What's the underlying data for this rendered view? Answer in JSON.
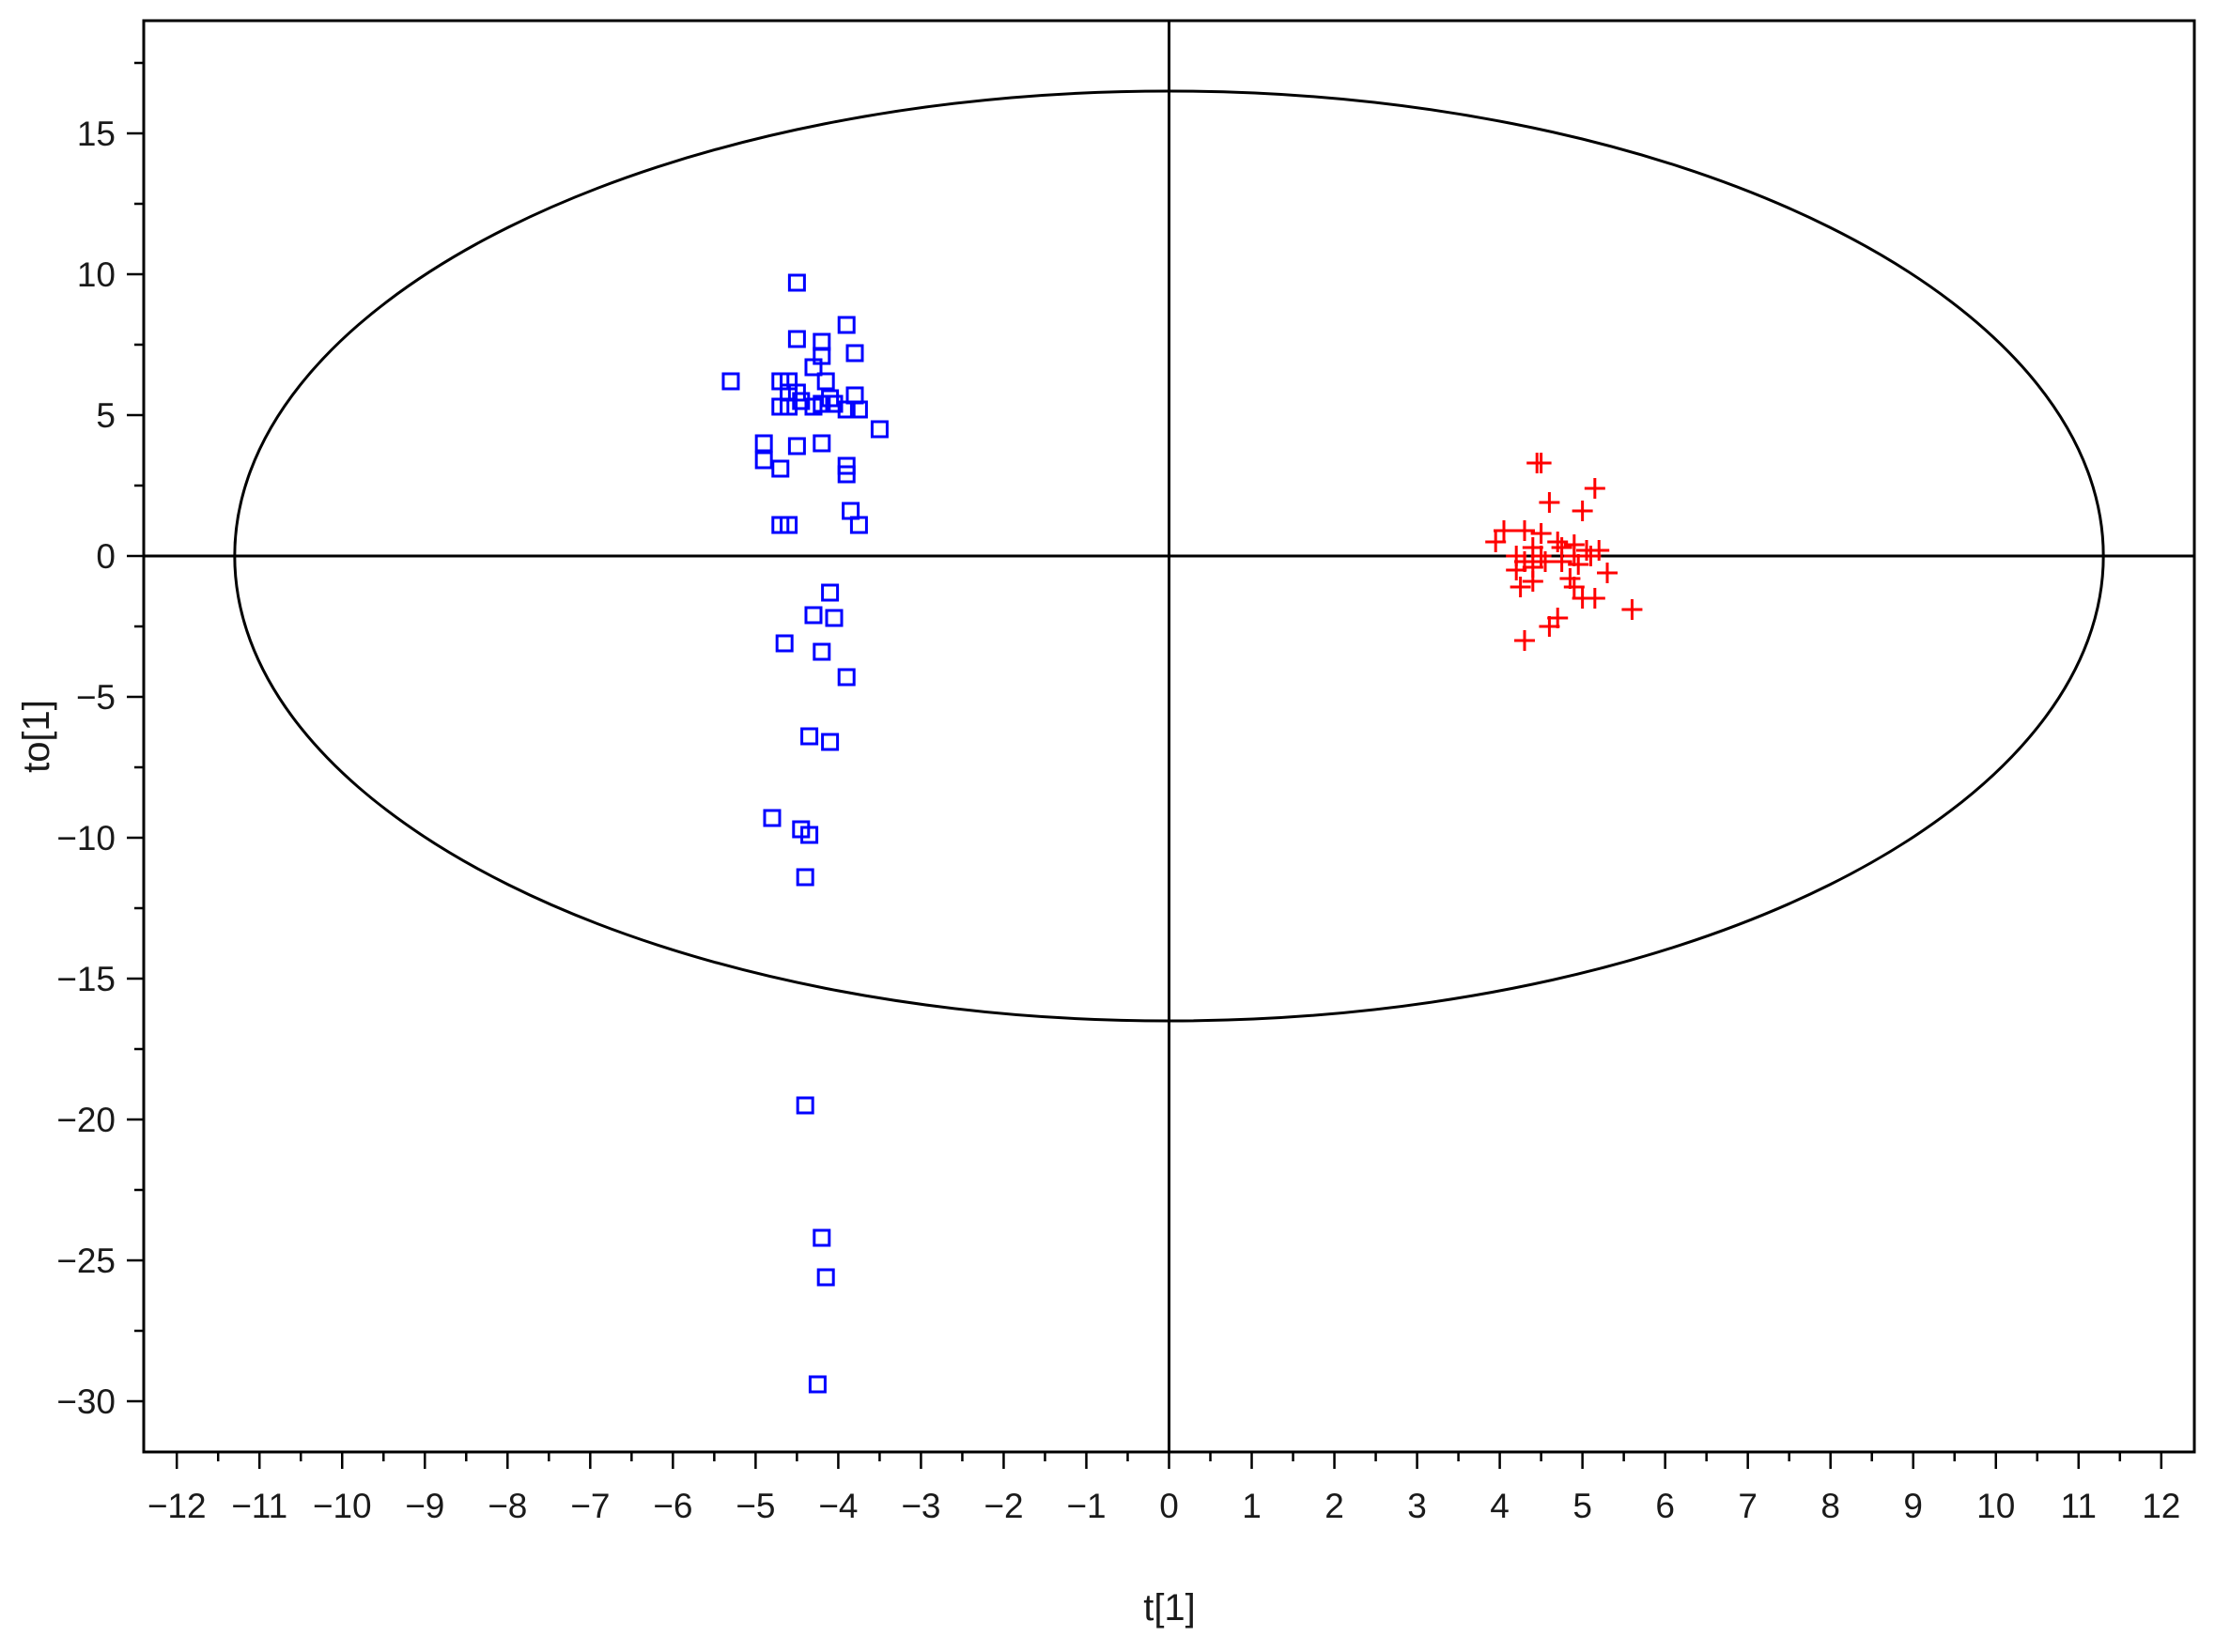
{
  "chart_data": {
    "type": "scatter",
    "title": "",
    "xlabel": "t[1]",
    "ylabel": "to[1]",
    "xlim": [
      -12.4,
      12.4
    ],
    "ylim": [
      -31.8,
      19
    ],
    "xticks": [
      -12,
      -11,
      -10,
      -9,
      -8,
      -7,
      -6,
      -5,
      -4,
      -3,
      -2,
      -1,
      0,
      1,
      2,
      3,
      4,
      5,
      6,
      7,
      8,
      9,
      10,
      11,
      12
    ],
    "yticks": [
      15,
      10,
      5,
      0,
      -5,
      -10,
      -15,
      -20,
      -25,
      -30
    ],
    "x_minor_step": 0.5,
    "y_minor_step": 2.5,
    "zero_lines": true,
    "grid": false,
    "legend": "none",
    "ellipse": {
      "cx": 0,
      "cy": 0,
      "rx": 11.3,
      "ry": 16.5,
      "color": "#000000"
    },
    "series": [
      {
        "marker": "square",
        "color": "#0000ff",
        "points": [
          [
            -4.5,
            9.7
          ],
          [
            -3.9,
            8.2
          ],
          [
            -4.2,
            7.6
          ],
          [
            -4.5,
            7.7
          ],
          [
            -4.2,
            7.1
          ],
          [
            -3.8,
            7.2
          ],
          [
            -4.3,
            6.7
          ],
          [
            -5.3,
            6.2
          ],
          [
            -4.7,
            6.2
          ],
          [
            -4.6,
            6.2
          ],
          [
            -4.15,
            6.2
          ],
          [
            -4.6,
            5.8
          ],
          [
            -4.5,
            5.8
          ],
          [
            -3.8,
            5.7
          ],
          [
            -4.1,
            5.6
          ],
          [
            -4.7,
            5.3
          ],
          [
            -4.45,
            5.5
          ],
          [
            -4.3,
            5.3
          ],
          [
            -4.2,
            5.4
          ],
          [
            -4.05,
            5.4
          ],
          [
            -3.9,
            5.2
          ],
          [
            -3.75,
            5.2
          ],
          [
            -4.6,
            5.3
          ],
          [
            -3.5,
            4.5
          ],
          [
            -4.9,
            4.0
          ],
          [
            -4.2,
            4.0
          ],
          [
            -4.5,
            3.9
          ],
          [
            -4.9,
            3.4
          ],
          [
            -4.7,
            3.1
          ],
          [
            -3.9,
            3.2
          ],
          [
            -3.9,
            2.9
          ],
          [
            -3.85,
            1.6
          ],
          [
            -4.7,
            1.1
          ],
          [
            -4.6,
            1.1
          ],
          [
            -3.75,
            1.1
          ],
          [
            -4.1,
            -1.3
          ],
          [
            -4.3,
            -2.1
          ],
          [
            -4.05,
            -2.2
          ],
          [
            -4.65,
            -3.1
          ],
          [
            -4.2,
            -3.4
          ],
          [
            -3.9,
            -4.3
          ],
          [
            -4.35,
            -6.4
          ],
          [
            -4.1,
            -6.6
          ],
          [
            -4.8,
            -9.3
          ],
          [
            -4.45,
            -9.7
          ],
          [
            -4.35,
            -9.9
          ],
          [
            -4.4,
            -11.4
          ],
          [
            -4.4,
            -19.5
          ],
          [
            -4.2,
            -24.2
          ],
          [
            -4.15,
            -25.6
          ],
          [
            -4.25,
            -29.4
          ]
        ]
      },
      {
        "marker": "plus",
        "color": "#ff0000",
        "points": [
          [
            4.5,
            3.3
          ],
          [
            4.45,
            3.3
          ],
          [
            5.15,
            2.4
          ],
          [
            4.6,
            1.9
          ],
          [
            5.0,
            1.6
          ],
          [
            4.3,
            0.9
          ],
          [
            4.05,
            0.9
          ],
          [
            4.5,
            0.8
          ],
          [
            3.95,
            0.5
          ],
          [
            4.7,
            0.5
          ],
          [
            4.9,
            0.4
          ],
          [
            4.4,
            0.3
          ],
          [
            4.75,
            0.3
          ],
          [
            5.05,
            0.2
          ],
          [
            5.2,
            0.2
          ],
          [
            4.2,
            0.0
          ],
          [
            4.5,
            0.0
          ],
          [
            4.9,
            0.0
          ],
          [
            5.1,
            0.0
          ],
          [
            4.3,
            -0.2
          ],
          [
            4.55,
            -0.2
          ],
          [
            4.75,
            -0.2
          ],
          [
            4.4,
            -0.4
          ],
          [
            4.95,
            -0.3
          ],
          [
            5.3,
            -0.6
          ],
          [
            4.2,
            -0.5
          ],
          [
            4.85,
            -0.8
          ],
          [
            4.4,
            -0.9
          ],
          [
            4.25,
            -1.1
          ],
          [
            4.9,
            -1.1
          ],
          [
            5.0,
            -1.5
          ],
          [
            5.15,
            -1.5
          ],
          [
            5.6,
            -1.9
          ],
          [
            4.7,
            -2.2
          ],
          [
            4.6,
            -2.5
          ],
          [
            4.3,
            -3.0
          ]
        ]
      }
    ]
  }
}
